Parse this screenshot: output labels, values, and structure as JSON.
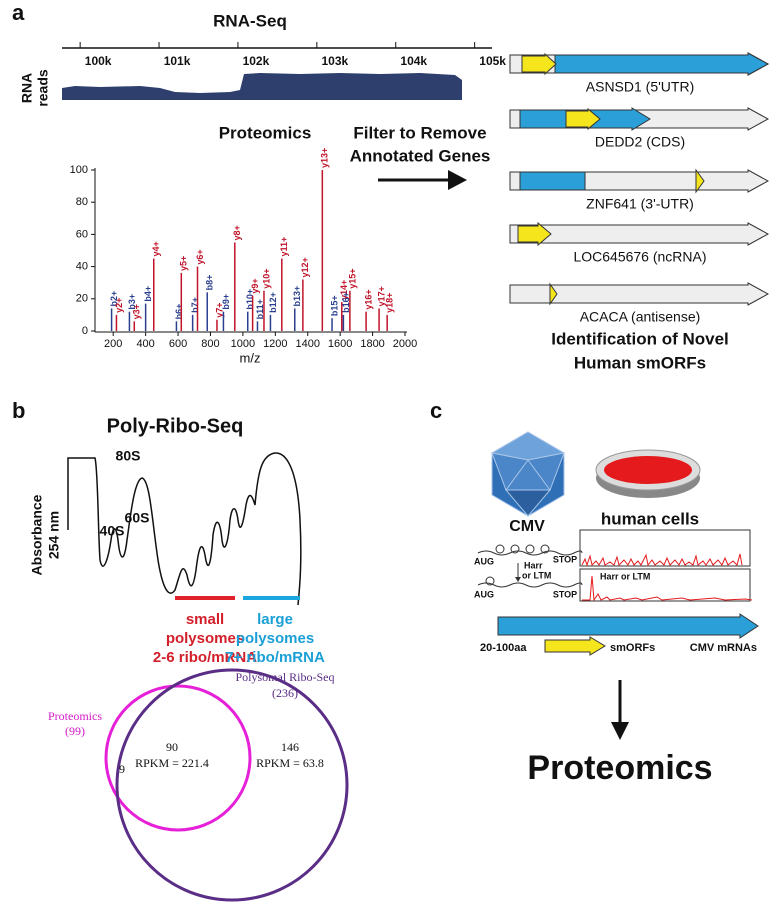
{
  "panel_a": {
    "label": "a",
    "rna_seq": {
      "title": "RNA-Seq",
      "ylabel": [
        "RNA",
        "reads"
      ],
      "xlim": [
        99770,
        105220
      ],
      "xticks": [
        {
          "value": 100000,
          "label": "100k"
        },
        {
          "value": 101000,
          "label": "101k"
        },
        {
          "value": 102000,
          "label": "102k"
        },
        {
          "value": 103000,
          "label": "103k"
        },
        {
          "value": 104000,
          "label": "104k"
        },
        {
          "value": 105000,
          "label": "105k"
        }
      ]
    },
    "proteomics_title": "Proteomics",
    "filter_text": [
      "Filter to Remove",
      "Annotated Genes"
    ],
    "spectrum": {
      "xlabel": "m/z",
      "xlim": [
        100,
        2000
      ],
      "ylim": [
        0,
        100
      ],
      "xticks": [
        200,
        400,
        600,
        800,
        1000,
        1200,
        1400,
        1600,
        1800,
        2000
      ],
      "yticks": [
        0,
        20,
        40,
        60,
        80,
        100
      ],
      "peaks": [
        {
          "label": "b2+",
          "mz": 190,
          "intensity": 14,
          "color": "#2a3f8f"
        },
        {
          "label": "y2+",
          "mz": 220,
          "intensity": 10,
          "color": "#c0142a"
        },
        {
          "label": "b3+",
          "mz": 300,
          "intensity": 12,
          "color": "#2a3f8f"
        },
        {
          "label": "y3+",
          "mz": 330,
          "intensity": 6,
          "color": "#c0142a"
        },
        {
          "label": "b4+",
          "mz": 400,
          "intensity": 17,
          "color": "#2a3f8f"
        },
        {
          "label": "y4+",
          "mz": 450,
          "intensity": 45,
          "color": "#c0142a"
        },
        {
          "label": "b6+",
          "mz": 590,
          "intensity": 6,
          "color": "#2a3f8f"
        },
        {
          "label": "y5+",
          "mz": 620,
          "intensity": 36,
          "color": "#c0142a"
        },
        {
          "label": "b7+",
          "mz": 690,
          "intensity": 10,
          "color": "#2a3f8f"
        },
        {
          "label": "y6+",
          "mz": 720,
          "intensity": 40,
          "color": "#c0142a"
        },
        {
          "label": "b8+",
          "mz": 780,
          "intensity": 24,
          "color": "#2a3f8f"
        },
        {
          "label": "y7+",
          "mz": 840,
          "intensity": 7,
          "color": "#c0142a"
        },
        {
          "label": "b9+",
          "mz": 880,
          "intensity": 12,
          "color": "#2a3f8f"
        },
        {
          "label": "y8+",
          "mz": 950,
          "intensity": 55,
          "color": "#c0142a"
        },
        {
          "label": "b10+",
          "mz": 1030,
          "intensity": 12,
          "color": "#2a3f8f"
        },
        {
          "label": "y9+",
          "mz": 1060,
          "intensity": 22,
          "color": "#c0142a"
        },
        {
          "label": "b11+",
          "mz": 1090,
          "intensity": 6,
          "color": "#2a3f8f"
        },
        {
          "label": "y10+",
          "mz": 1130,
          "intensity": 25,
          "color": "#c0142a"
        },
        {
          "label": "b12+",
          "mz": 1170,
          "intensity": 10,
          "color": "#2a3f8f"
        },
        {
          "label": "y11+",
          "mz": 1240,
          "intensity": 45,
          "color": "#c0142a"
        },
        {
          "label": "b13+",
          "mz": 1320,
          "intensity": 14,
          "color": "#2a3f8f"
        },
        {
          "label": "y12+",
          "mz": 1370,
          "intensity": 32,
          "color": "#c0142a"
        },
        {
          "label": "y13+",
          "mz": 1490,
          "intensity": 100,
          "color": "#c0142a"
        },
        {
          "label": "b15+",
          "mz": 1550,
          "intensity": 8,
          "color": "#2a3f8f"
        },
        {
          "label": "y14+",
          "mz": 1610,
          "intensity": 18,
          "color": "#c0142a"
        },
        {
          "label": "b16+",
          "mz": 1620,
          "intensity": 10,
          "color": "#2a3f8f"
        },
        {
          "label": "y15+",
          "mz": 1660,
          "intensity": 25,
          "color": "#c0142a"
        },
        {
          "label": "y16+",
          "mz": 1760,
          "intensity": 12,
          "color": "#c0142a"
        },
        {
          "label": "y17+",
          "mz": 1840,
          "intensity": 14,
          "color": "#c0142a"
        },
        {
          "label": "y18+",
          "mz": 1890,
          "intensity": 10,
          "color": "#c0142a"
        }
      ]
    },
    "genes": [
      "ASNSD1 (5'UTR)",
      "DEDD2 (CDS)",
      "ZNF641 (3'-UTR)",
      "LOC645676 (ncRNA)",
      "ACACA (antisense)"
    ],
    "result": [
      "Identification of Novel",
      "Human smORFs"
    ]
  },
  "panel_b": {
    "label": "b",
    "title": "Poly-Ribo-Seq",
    "ylabel": [
      "Absorbance",
      "254 nm"
    ],
    "peaks": [
      "40S",
      "60S",
      "80S"
    ],
    "small": [
      "small",
      "polysomes",
      "2-6 ribo/mRNA"
    ],
    "large": [
      "large",
      "polysomes",
      "7+ ribo/mRNA"
    ],
    "venn": {
      "proteomics": [
        "Proteomics",
        "(99)"
      ],
      "ribo_seq": [
        "Polysomal Ribo-Seq",
        "(236)"
      ],
      "only_proteomics": "9",
      "overlap": [
        "90",
        "RPKM = 221.4"
      ],
      "only_ribo_seq": [
        "146",
        "RPKM = 63.8"
      ]
    }
  },
  "panel_c": {
    "label": "c",
    "cmv": "CMV",
    "cells": "human cells",
    "track1": [
      "AUG",
      "STOP"
    ],
    "treatment": [
      "Harr",
      "or LTM"
    ],
    "track2": [
      "AUG",
      "STOP"
    ],
    "profile_label": "Harr or LTM",
    "size": "20-100aa",
    "smorfs": "smORFs",
    "mrnas": "CMV mRNAs",
    "result": "Proteomics"
  }
}
